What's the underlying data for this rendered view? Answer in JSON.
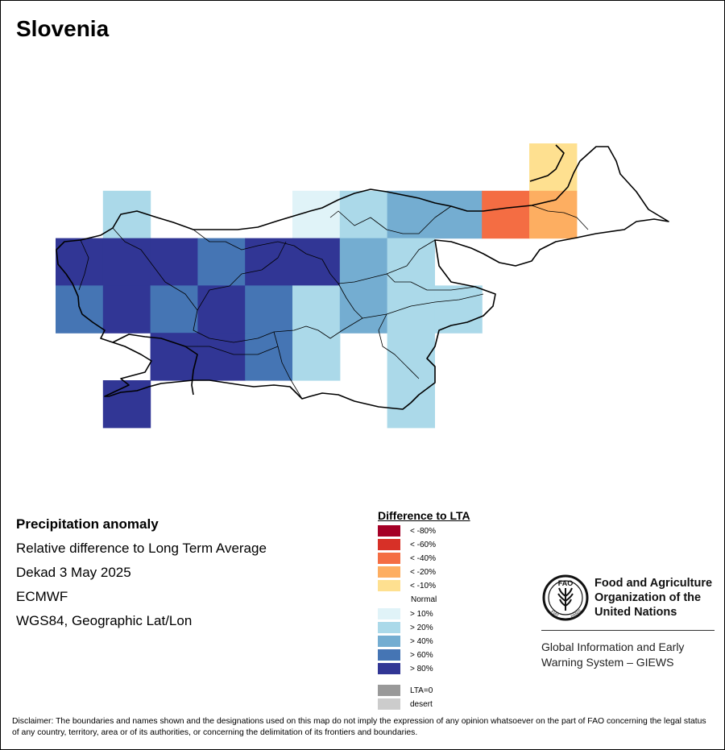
{
  "map_title": "Slovenia",
  "info": {
    "heading": "Precipitation anomaly",
    "line1": "Relative difference to Long Term Average",
    "line2": "Dekad 3 May 2025",
    "line3": "ECMWF",
    "line4": "WGS84, Geographic Lat/Lon"
  },
  "legend": {
    "title": "Difference to LTA",
    "dry": [
      {
        "label": "< -80%",
        "color": "#a50026"
      },
      {
        "label": "< -60%",
        "color": "#d73027"
      },
      {
        "label": "< -40%",
        "color": "#f46d43"
      },
      {
        "label": "< -20%",
        "color": "#fdae61"
      },
      {
        "label": "< -10%",
        "color": "#fee090"
      }
    ],
    "normal_label": "Normal",
    "wet": [
      {
        "label": "> 10%",
        "color": "#e0f3f8"
      },
      {
        "label": "> 20%",
        "color": "#abd9e9"
      },
      {
        "label": "> 40%",
        "color": "#74add1"
      },
      {
        "label": "> 60%",
        "color": "#4575b4"
      },
      {
        "label": "> 80%",
        "color": "#313695"
      }
    ],
    "special": [
      {
        "label": "LTA=0",
        "color": "#999999"
      },
      {
        "label": "desert",
        "color": "#cccccc"
      }
    ]
  },
  "grid_cells": [
    {
      "row": 0,
      "col": 10,
      "cls": "< -10%"
    },
    {
      "row": 1,
      "col": 1,
      "cls": "> 20%"
    },
    {
      "row": 1,
      "col": 5,
      "cls": "> 10%"
    },
    {
      "row": 1,
      "col": 6,
      "cls": "> 20%"
    },
    {
      "row": 1,
      "col": 7,
      "cls": "> 40%"
    },
    {
      "row": 1,
      "col": 8,
      "cls": "> 40%"
    },
    {
      "row": 1,
      "col": 9,
      "cls": "< -40%"
    },
    {
      "row": 1,
      "col": 10,
      "cls": "< -20%"
    },
    {
      "row": 2,
      "col": 0,
      "cls": "> 80%"
    },
    {
      "row": 2,
      "col": 1,
      "cls": "> 80%"
    },
    {
      "row": 2,
      "col": 2,
      "cls": "> 80%"
    },
    {
      "row": 2,
      "col": 3,
      "cls": "> 60%"
    },
    {
      "row": 2,
      "col": 4,
      "cls": "> 80%"
    },
    {
      "row": 2,
      "col": 5,
      "cls": "> 80%"
    },
    {
      "row": 2,
      "col": 6,
      "cls": "> 40%"
    },
    {
      "row": 2,
      "col": 7,
      "cls": "> 20%"
    },
    {
      "row": 3,
      "col": 0,
      "cls": "> 60%"
    },
    {
      "row": 3,
      "col": 1,
      "cls": "> 80%"
    },
    {
      "row": 3,
      "col": 2,
      "cls": "> 60%"
    },
    {
      "row": 3,
      "col": 3,
      "cls": "> 80%"
    },
    {
      "row": 3,
      "col": 4,
      "cls": "> 60%"
    },
    {
      "row": 3,
      "col": 5,
      "cls": "> 20%"
    },
    {
      "row": 3,
      "col": 6,
      "cls": "> 40%"
    },
    {
      "row": 3,
      "col": 7,
      "cls": "> 20%"
    },
    {
      "row": 3,
      "col": 8,
      "cls": "> 20%"
    },
    {
      "row": 4,
      "col": 2,
      "cls": "> 80%"
    },
    {
      "row": 4,
      "col": 3,
      "cls": "> 80%"
    },
    {
      "row": 4,
      "col": 4,
      "cls": "> 60%"
    },
    {
      "row": 4,
      "col": 5,
      "cls": "> 20%"
    },
    {
      "row": 4,
      "col": 7,
      "cls": "> 20%"
    },
    {
      "row": 5,
      "col": 1,
      "cls": "> 80%"
    },
    {
      "row": 5,
      "col": 7,
      "cls": "> 20%"
    }
  ],
  "fao": {
    "name": "Food and Agriculture Organization of the United Nations",
    "logo_letters": "FAO",
    "motto_left": "FIAT",
    "motto_right": "PANIS",
    "program": "Global Information and Early Warning System – GIEWS"
  },
  "disclaimer": "Disclaimer: The boundaries and names shown and the designations used on this map do not imply the expression of any opinion whatsoever on the part of FAO concerning the legal status of any country, territory, area or of its authorities, or concerning the delimitation of its frontiers and boundaries."
}
